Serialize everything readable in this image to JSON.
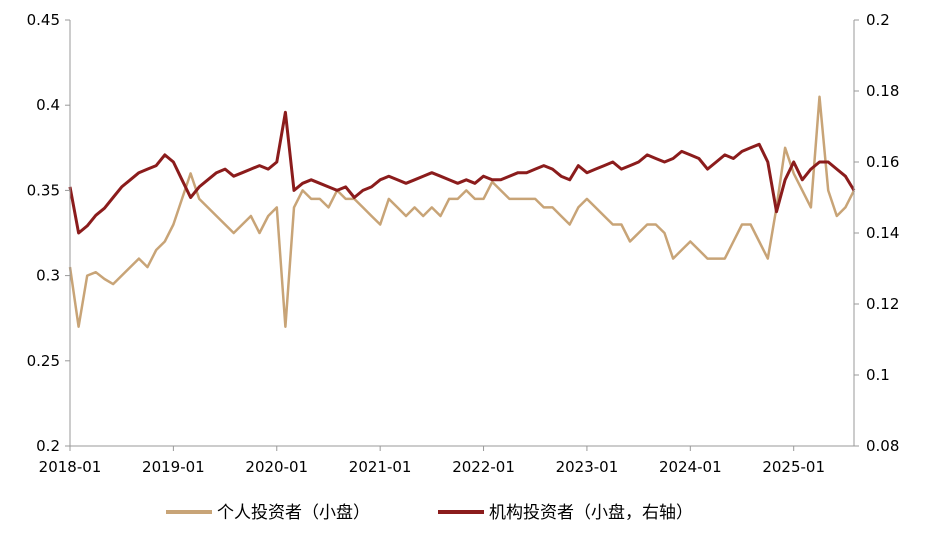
{
  "chart_data": {
    "type": "line",
    "title": "",
    "x_ticks": [
      "2018-01",
      "2019-01",
      "2020-01",
      "2021-01",
      "2022-01",
      "2023-01",
      "2024-01",
      "2025-01"
    ],
    "x_range": [
      "2018-01",
      "2025-08"
    ],
    "y_left": {
      "range": [
        0.2,
        0.45
      ],
      "ticks": [
        "0.45",
        "0.4",
        "0.35",
        "0.3",
        "0.25",
        "0.2"
      ]
    },
    "y_right": {
      "range": [
        0.08,
        0.2
      ],
      "ticks": [
        "0.2",
        "0.18",
        "0.16",
        "0.14",
        "0.12",
        "0.1",
        "0.08"
      ]
    },
    "grid": false,
    "legend_position": "bottom",
    "series": [
      {
        "name": "个人投资者（小盘）",
        "axis": "left",
        "color": "#c8a477",
        "x": [
          "2018-01",
          "2018-02",
          "2018-03",
          "2018-04",
          "2018-05",
          "2018-06",
          "2018-07",
          "2018-08",
          "2018-09",
          "2018-10",
          "2018-11",
          "2018-12",
          "2019-01",
          "2019-02",
          "2019-03",
          "2019-04",
          "2019-05",
          "2019-06",
          "2019-07",
          "2019-08",
          "2019-09",
          "2019-10",
          "2019-11",
          "2019-12",
          "2020-01",
          "2020-02",
          "2020-03",
          "2020-04",
          "2020-05",
          "2020-06",
          "2020-07",
          "2020-08",
          "2020-09",
          "2020-10",
          "2020-11",
          "2020-12",
          "2021-01",
          "2021-02",
          "2021-03",
          "2021-04",
          "2021-05",
          "2021-06",
          "2021-07",
          "2021-08",
          "2021-09",
          "2021-10",
          "2021-11",
          "2021-12",
          "2022-01",
          "2022-02",
          "2022-03",
          "2022-04",
          "2022-05",
          "2022-06",
          "2022-07",
          "2022-08",
          "2022-09",
          "2022-10",
          "2022-11",
          "2022-12",
          "2023-01",
          "2023-02",
          "2023-03",
          "2023-04",
          "2023-05",
          "2023-06",
          "2023-07",
          "2023-08",
          "2023-09",
          "2023-10",
          "2023-11",
          "2023-12",
          "2024-01",
          "2024-02",
          "2024-03",
          "2024-04",
          "2024-05",
          "2024-06",
          "2024-07",
          "2024-08",
          "2024-09",
          "2024-10",
          "2024-11",
          "2024-12",
          "2025-01",
          "2025-02",
          "2025-03",
          "2025-04",
          "2025-05",
          "2025-06",
          "2025-07",
          "2025-08"
        ],
        "values": [
          0.305,
          0.27,
          0.3,
          0.302,
          0.298,
          0.295,
          0.3,
          0.305,
          0.31,
          0.305,
          0.315,
          0.32,
          0.33,
          0.345,
          0.36,
          0.345,
          0.34,
          0.335,
          0.33,
          0.325,
          0.33,
          0.335,
          0.325,
          0.335,
          0.34,
          0.27,
          0.34,
          0.35,
          0.345,
          0.345,
          0.34,
          0.35,
          0.345,
          0.345,
          0.34,
          0.335,
          0.33,
          0.345,
          0.34,
          0.335,
          0.34,
          0.335,
          0.34,
          0.335,
          0.345,
          0.345,
          0.35,
          0.345,
          0.345,
          0.355,
          0.35,
          0.345,
          0.345,
          0.345,
          0.345,
          0.34,
          0.34,
          0.335,
          0.33,
          0.34,
          0.345,
          0.34,
          0.335,
          0.33,
          0.33,
          0.32,
          0.325,
          0.33,
          0.33,
          0.325,
          0.31,
          0.315,
          0.32,
          0.315,
          0.31,
          0.31,
          0.31,
          0.32,
          0.33,
          0.33,
          0.32,
          0.31,
          0.34,
          0.375,
          0.36,
          0.35,
          0.34,
          0.405,
          0.35,
          0.335,
          0.34,
          0.35
        ]
      },
      {
        "name": "机构投资者（小盘，右轴）",
        "axis": "right",
        "color": "#8b1c1c",
        "x": [
          "2018-01",
          "2018-02",
          "2018-03",
          "2018-04",
          "2018-05",
          "2018-06",
          "2018-07",
          "2018-08",
          "2018-09",
          "2018-10",
          "2018-11",
          "2018-12",
          "2019-01",
          "2019-02",
          "2019-03",
          "2019-04",
          "2019-05",
          "2019-06",
          "2019-07",
          "2019-08",
          "2019-09",
          "2019-10",
          "2019-11",
          "2019-12",
          "2020-01",
          "2020-02",
          "2020-03",
          "2020-04",
          "2020-05",
          "2020-06",
          "2020-07",
          "2020-08",
          "2020-09",
          "2020-10",
          "2020-11",
          "2020-12",
          "2021-01",
          "2021-02",
          "2021-03",
          "2021-04",
          "2021-05",
          "2021-06",
          "2021-07",
          "2021-08",
          "2021-09",
          "2021-10",
          "2021-11",
          "2021-12",
          "2022-01",
          "2022-02",
          "2022-03",
          "2022-04",
          "2022-05",
          "2022-06",
          "2022-07",
          "2022-08",
          "2022-09",
          "2022-10",
          "2022-11",
          "2022-12",
          "2023-01",
          "2023-02",
          "2023-03",
          "2023-04",
          "2023-05",
          "2023-06",
          "2023-07",
          "2023-08",
          "2023-09",
          "2023-10",
          "2023-11",
          "2023-12",
          "2024-01",
          "2024-02",
          "2024-03",
          "2024-04",
          "2024-05",
          "2024-06",
          "2024-07",
          "2024-08",
          "2024-09",
          "2024-10",
          "2024-11",
          "2024-12",
          "2025-01",
          "2025-02",
          "2025-03",
          "2025-04",
          "2025-05",
          "2025-06",
          "2025-07",
          "2025-08"
        ],
        "values": [
          0.153,
          0.14,
          0.142,
          0.145,
          0.147,
          0.15,
          0.153,
          0.155,
          0.157,
          0.158,
          0.159,
          0.162,
          0.16,
          0.155,
          0.15,
          0.153,
          0.155,
          0.157,
          0.158,
          0.156,
          0.157,
          0.158,
          0.159,
          0.158,
          0.16,
          0.174,
          0.152,
          0.154,
          0.155,
          0.154,
          0.153,
          0.152,
          0.153,
          0.15,
          0.152,
          0.153,
          0.155,
          0.156,
          0.155,
          0.154,
          0.155,
          0.156,
          0.157,
          0.156,
          0.155,
          0.154,
          0.155,
          0.154,
          0.156,
          0.155,
          0.155,
          0.156,
          0.157,
          0.157,
          0.158,
          0.159,
          0.158,
          0.156,
          0.155,
          0.159,
          0.157,
          0.158,
          0.159,
          0.16,
          0.158,
          0.159,
          0.16,
          0.162,
          0.161,
          0.16,
          0.161,
          0.163,
          0.162,
          0.161,
          0.158,
          0.16,
          0.162,
          0.161,
          0.163,
          0.164,
          0.165,
          0.16,
          0.146,
          0.155,
          0.16,
          0.155,
          0.158,
          0.16,
          0.16,
          0.158,
          0.156,
          0.152
        ]
      }
    ]
  }
}
